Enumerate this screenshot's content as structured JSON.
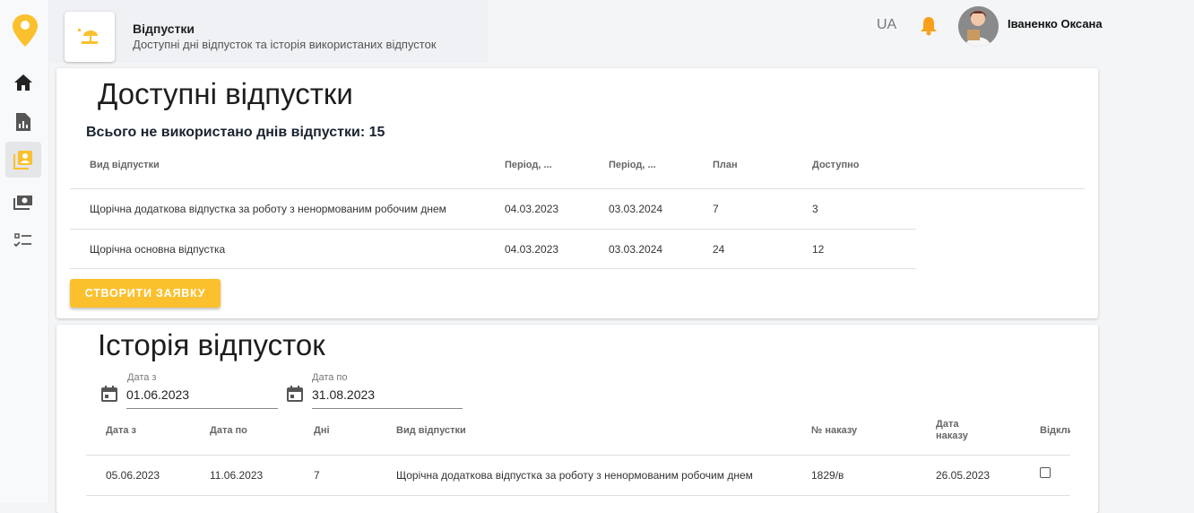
{
  "header": {
    "title": "Відпустки",
    "subtitle": "Доступні дні відпусток та історія використаних відпусток",
    "lang": "UA",
    "user": "Іваненко Оксана"
  },
  "sidebar": {
    "items": [
      {
        "icon": "home-icon"
      },
      {
        "icon": "report-icon"
      },
      {
        "icon": "vacation-profile-icon",
        "active": true
      },
      {
        "icon": "money-icon"
      },
      {
        "icon": "checklist-icon"
      }
    ]
  },
  "available": {
    "title": "Доступні відпустки",
    "total": "Всього не використано днів відпустки: 15",
    "columns": [
      "Вид відпустки",
      "Період, ...",
      "Період, ...",
      "План",
      "Доступно"
    ],
    "rows": [
      [
        "Щорічна додаткова відпустка за роботу з ненормованим робочим днем",
        "04.03.2023",
        "03.03.2024",
        "7",
        "3"
      ],
      [
        "Щорічна основна відпустка",
        "04.03.2023",
        "03.03.2024",
        "24",
        "12"
      ]
    ],
    "create_button": "СТВОРИТИ ЗАЯВКУ"
  },
  "history": {
    "title": "Історія відпусток",
    "date_from": {
      "label": "Дата з",
      "value": "01.06.2023"
    },
    "date_to": {
      "label": "Дата по",
      "value": "31.08.2023"
    },
    "columns": [
      "Дата з",
      "Дата по",
      "Дні",
      "Вид відпустки",
      "№ наказу",
      "Дата наказу",
      "Відкли"
    ],
    "rows": [
      [
        "05.06.2023",
        "11.06.2023",
        "7",
        "Щорічна додаткова відпустка за роботу з ненормованим робочим днем",
        "1829/в",
        "26.05.2023",
        false
      ]
    ]
  },
  "colors": {
    "accent": "#fbc02d",
    "bell": "#f9a01b"
  }
}
